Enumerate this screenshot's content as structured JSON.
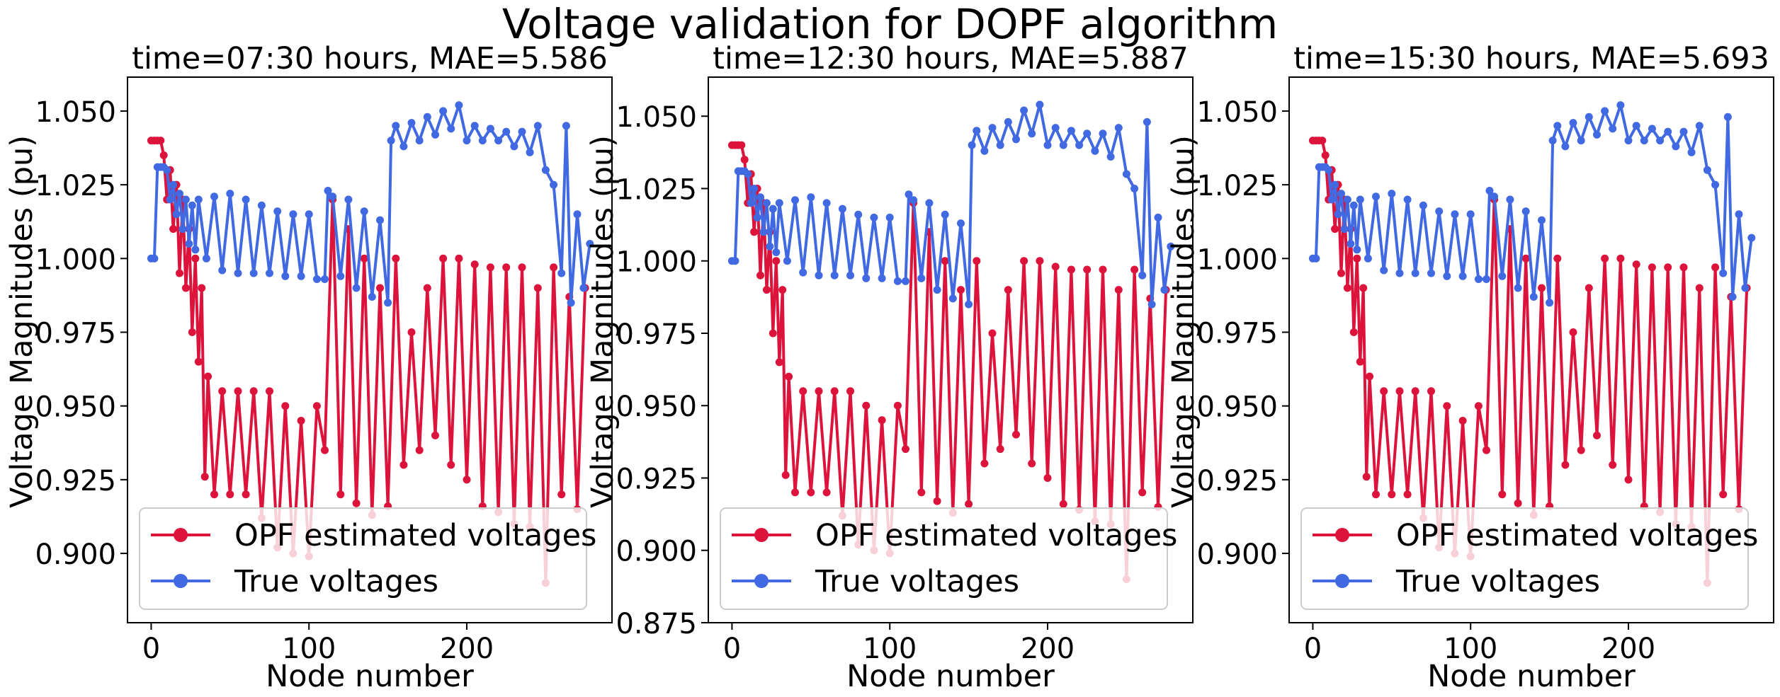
{
  "figure": {
    "title": "Voltage validation for DOPF algorithm",
    "colors": {
      "opf": "#dc143c",
      "true": "#4169e1",
      "axes": "#000000"
    }
  },
  "chart_data": [
    {
      "type": "line",
      "title": "time=07:30 hours, MAE=5.586",
      "xlabel": "Node number",
      "ylabel": "Voltage Magnitudes (pu)",
      "xlim": [
        -15,
        292
      ],
      "ylim": [
        0.8765,
        1.0615
      ],
      "xticks": [
        0,
        100,
        200
      ],
      "yticks": [
        0.9,
        0.925,
        0.95,
        0.975,
        1.0,
        1.025,
        1.05
      ],
      "ytick_labels": [
        "0.900",
        "0.925",
        "0.950",
        "0.975",
        "1.000",
        "1.025",
        "1.050"
      ],
      "legend": {
        "placement": "lower left",
        "entries": [
          "OPF estimated voltages",
          "True voltages"
        ]
      },
      "series": [
        {
          "name": "OPF estimated voltages",
          "color": "#dc143c",
          "x": [
            0,
            2,
            4,
            6,
            8,
            10,
            12,
            14,
            16,
            18,
            20,
            22,
            24,
            26,
            28,
            30,
            32,
            34,
            36,
            40,
            45,
            50,
            55,
            60,
            65,
            70,
            75,
            80,
            85,
            90,
            95,
            100,
            105,
            110,
            115,
            120,
            125,
            130,
            135,
            140,
            145,
            150,
            155,
            160,
            165,
            170,
            175,
            180,
            185,
            190,
            195,
            200,
            205,
            210,
            215,
            220,
            225,
            230,
            235,
            240,
            245,
            250,
            255,
            260,
            265,
            270,
            275
          ],
          "y": [
            1.04,
            1.04,
            1.04,
            1.04,
            1.035,
            1.02,
            1.03,
            1.01,
            1.025,
            0.995,
            1.02,
            0.99,
            1.01,
            0.975,
            1.0,
            0.965,
            0.99,
            0.926,
            0.96,
            0.92,
            0.955,
            0.92,
            0.955,
            0.92,
            0.955,
            0.912,
            0.955,
            0.902,
            0.95,
            0.9,
            0.945,
            0.899,
            0.95,
            0.935,
            1.02,
            0.92,
            1.01,
            0.917,
            1.0,
            0.913,
            0.99,
            0.916,
            1.0,
            0.93,
            0.975,
            0.935,
            0.99,
            0.94,
            1.0,
            0.93,
            1.0,
            0.925,
            0.998,
            0.916,
            0.997,
            0.914,
            0.997,
            0.91,
            0.997,
            0.909,
            0.99,
            0.89,
            0.997,
            0.92,
            0.987,
            0.915,
            0.99
          ]
        },
        {
          "name": "True voltages",
          "color": "#4169e1",
          "x": [
            0,
            2,
            4,
            6,
            8,
            10,
            12,
            14,
            16,
            18,
            20,
            22,
            24,
            26,
            28,
            30,
            35,
            40,
            45,
            50,
            55,
            60,
            65,
            70,
            75,
            80,
            85,
            90,
            95,
            100,
            105,
            110,
            112,
            115,
            120,
            125,
            130,
            135,
            140,
            145,
            150,
            152,
            155,
            160,
            165,
            170,
            175,
            180,
            185,
            190,
            195,
            200,
            205,
            210,
            215,
            220,
            225,
            230,
            235,
            240,
            245,
            250,
            255,
            260,
            263,
            266,
            270,
            274,
            278
          ],
          "y": [
            1.0,
            1.0,
            1.031,
            1.031,
            1.031,
            1.03,
            1.02,
            1.025,
            1.015,
            1.022,
            1.01,
            1.02,
            1.005,
            1.018,
            1.003,
            1.02,
            1.0,
            1.021,
            0.996,
            1.022,
            0.995,
            1.02,
            0.995,
            1.018,
            0.995,
            1.016,
            0.994,
            1.015,
            0.994,
            1.015,
            0.993,
            0.993,
            1.023,
            1.021,
            0.994,
            1.02,
            0.99,
            1.016,
            0.987,
            1.013,
            0.985,
            1.04,
            1.045,
            1.038,
            1.046,
            1.04,
            1.048,
            1.042,
            1.05,
            1.044,
            1.052,
            1.04,
            1.045,
            1.04,
            1.044,
            1.04,
            1.043,
            1.038,
            1.043,
            1.036,
            1.045,
            1.03,
            1.025,
            0.995,
            1.045,
            0.985,
            1.015,
            0.99,
            1.005
          ]
        }
      ]
    },
    {
      "type": "line",
      "title": "time=12:30 hours, MAE=5.887",
      "xlabel": "Node number",
      "ylabel": "Voltage Magnitudes (pu)",
      "xlim": [
        -15,
        292
      ],
      "ylim": [
        0.875,
        1.0635
      ],
      "xticks": [
        0,
        100,
        200
      ],
      "yticks": [
        0.875,
        0.9,
        0.925,
        0.95,
        0.975,
        1.0,
        1.025,
        1.05
      ],
      "ytick_labels": [
        "0.875",
        "0.900",
        "0.925",
        "0.950",
        "0.975",
        "1.000",
        "1.025",
        "1.050"
      ],
      "legend": {
        "placement": "lower left",
        "entries": [
          "OPF estimated voltages",
          "True voltages"
        ]
      },
      "series": [
        {
          "name": "OPF estimated voltages",
          "color": "#dc143c",
          "x": [
            0,
            2,
            4,
            6,
            8,
            10,
            12,
            14,
            16,
            18,
            20,
            22,
            24,
            26,
            28,
            30,
            32,
            34,
            36,
            40,
            45,
            50,
            55,
            60,
            65,
            70,
            75,
            80,
            85,
            90,
            95,
            100,
            105,
            110,
            115,
            120,
            125,
            130,
            135,
            140,
            145,
            150,
            155,
            160,
            165,
            170,
            175,
            180,
            185,
            190,
            195,
            200,
            205,
            210,
            215,
            220,
            225,
            230,
            235,
            240,
            245,
            250,
            255,
            260,
            265,
            270,
            275
          ],
          "y": [
            1.04,
            1.04,
            1.04,
            1.04,
            1.035,
            1.02,
            1.03,
            1.01,
            1.025,
            0.995,
            1.02,
            0.99,
            1.01,
            0.975,
            1.0,
            0.965,
            0.99,
            0.926,
            0.96,
            0.92,
            0.955,
            0.92,
            0.955,
            0.92,
            0.955,
            0.912,
            0.955,
            0.902,
            0.95,
            0.9,
            0.945,
            0.899,
            0.95,
            0.935,
            1.02,
            0.92,
            1.01,
            0.917,
            1.0,
            0.913,
            0.99,
            0.916,
            1.0,
            0.93,
            0.975,
            0.935,
            0.99,
            0.94,
            1.0,
            0.93,
            1.0,
            0.925,
            0.998,
            0.916,
            0.997,
            0.914,
            0.997,
            0.91,
            0.997,
            0.909,
            0.99,
            0.89,
            0.997,
            0.92,
            0.987,
            0.915,
            0.99
          ]
        },
        {
          "name": "True voltages",
          "color": "#4169e1",
          "x": [
            0,
            2,
            4,
            6,
            8,
            10,
            12,
            14,
            16,
            18,
            20,
            22,
            24,
            26,
            28,
            30,
            35,
            40,
            45,
            50,
            55,
            60,
            65,
            70,
            75,
            80,
            85,
            90,
            95,
            100,
            105,
            110,
            112,
            115,
            120,
            125,
            130,
            135,
            140,
            145,
            150,
            152,
            155,
            160,
            165,
            170,
            175,
            180,
            185,
            190,
            195,
            200,
            205,
            210,
            215,
            220,
            225,
            230,
            235,
            240,
            245,
            250,
            255,
            260,
            263,
            266,
            270,
            274,
            278
          ],
          "y": [
            1.0,
            1.0,
            1.031,
            1.031,
            1.031,
            1.03,
            1.02,
            1.025,
            1.015,
            1.022,
            1.01,
            1.02,
            1.005,
            1.018,
            1.003,
            1.02,
            1.0,
            1.021,
            0.996,
            1.022,
            0.995,
            1.02,
            0.995,
            1.018,
            0.995,
            1.016,
            0.994,
            1.015,
            0.994,
            1.015,
            0.993,
            0.993,
            1.023,
            1.021,
            0.994,
            1.02,
            0.99,
            1.016,
            0.987,
            1.013,
            0.985,
            1.04,
            1.045,
            1.038,
            1.046,
            1.04,
            1.048,
            1.042,
            1.052,
            1.044,
            1.054,
            1.04,
            1.046,
            1.04,
            1.045,
            1.04,
            1.044,
            1.038,
            1.044,
            1.036,
            1.046,
            1.03,
            1.025,
            0.995,
            1.048,
            0.985,
            1.015,
            0.99,
            1.005
          ]
        }
      ]
    },
    {
      "type": "line",
      "title": "time=15:30 hours, MAE=5.693",
      "xlabel": "Node number",
      "ylabel": "Voltage Magnitudes (pu)",
      "xlim": [
        -15,
        292
      ],
      "ylim": [
        0.8765,
        1.0615
      ],
      "xticks": [
        0,
        100,
        200
      ],
      "yticks": [
        0.9,
        0.925,
        0.95,
        0.975,
        1.0,
        1.025,
        1.05
      ],
      "ytick_labels": [
        "0.900",
        "0.925",
        "0.950",
        "0.975",
        "1.000",
        "1.025",
        "1.050"
      ],
      "legend": {
        "placement": "lower left",
        "entries": [
          "OPF estimated voltages",
          "True voltages"
        ]
      },
      "series": [
        {
          "name": "OPF estimated voltages",
          "color": "#dc143c",
          "x": [
            0,
            2,
            4,
            6,
            8,
            10,
            12,
            14,
            16,
            18,
            20,
            22,
            24,
            26,
            28,
            30,
            32,
            34,
            36,
            40,
            45,
            50,
            55,
            60,
            65,
            70,
            75,
            80,
            85,
            90,
            95,
            100,
            105,
            110,
            115,
            120,
            125,
            130,
            135,
            140,
            145,
            150,
            155,
            160,
            165,
            170,
            175,
            180,
            185,
            190,
            195,
            200,
            205,
            210,
            215,
            220,
            225,
            230,
            235,
            240,
            245,
            250,
            255,
            260,
            265,
            270,
            275
          ],
          "y": [
            1.04,
            1.04,
            1.04,
            1.04,
            1.035,
            1.02,
            1.03,
            1.01,
            1.025,
            0.995,
            1.02,
            0.99,
            1.01,
            0.975,
            1.0,
            0.965,
            0.99,
            0.926,
            0.96,
            0.92,
            0.955,
            0.92,
            0.955,
            0.92,
            0.955,
            0.912,
            0.955,
            0.902,
            0.95,
            0.9,
            0.945,
            0.899,
            0.95,
            0.935,
            1.02,
            0.92,
            1.01,
            0.917,
            1.0,
            0.913,
            0.99,
            0.916,
            1.0,
            0.93,
            0.975,
            0.935,
            0.99,
            0.94,
            1.0,
            0.93,
            1.0,
            0.925,
            0.998,
            0.916,
            0.997,
            0.914,
            0.997,
            0.91,
            0.997,
            0.909,
            0.99,
            0.89,
            0.997,
            0.92,
            0.987,
            0.915,
            0.99
          ]
        },
        {
          "name": "True voltages",
          "color": "#4169e1",
          "x": [
            0,
            2,
            4,
            6,
            8,
            10,
            12,
            14,
            16,
            18,
            20,
            22,
            24,
            26,
            28,
            30,
            35,
            40,
            45,
            50,
            55,
            60,
            65,
            70,
            75,
            80,
            85,
            90,
            95,
            100,
            105,
            110,
            112,
            115,
            120,
            125,
            130,
            135,
            140,
            145,
            150,
            152,
            155,
            160,
            165,
            170,
            175,
            180,
            185,
            190,
            195,
            200,
            205,
            210,
            215,
            220,
            225,
            230,
            235,
            240,
            245,
            250,
            255,
            260,
            263,
            266,
            270,
            274,
            278
          ],
          "y": [
            1.0,
            1.0,
            1.031,
            1.031,
            1.031,
            1.03,
            1.02,
            1.025,
            1.015,
            1.022,
            1.01,
            1.02,
            1.005,
            1.018,
            1.003,
            1.02,
            1.0,
            1.021,
            0.996,
            1.022,
            0.995,
            1.02,
            0.995,
            1.018,
            0.995,
            1.016,
            0.994,
            1.015,
            0.994,
            1.015,
            0.993,
            0.993,
            1.023,
            1.021,
            0.994,
            1.02,
            0.99,
            1.016,
            0.987,
            1.013,
            0.985,
            1.04,
            1.045,
            1.038,
            1.046,
            1.04,
            1.048,
            1.042,
            1.05,
            1.044,
            1.052,
            1.04,
            1.045,
            1.04,
            1.044,
            1.04,
            1.043,
            1.038,
            1.043,
            1.036,
            1.045,
            1.03,
            1.025,
            0.995,
            1.048,
            0.987,
            1.015,
            0.99,
            1.007
          ]
        }
      ]
    }
  ]
}
